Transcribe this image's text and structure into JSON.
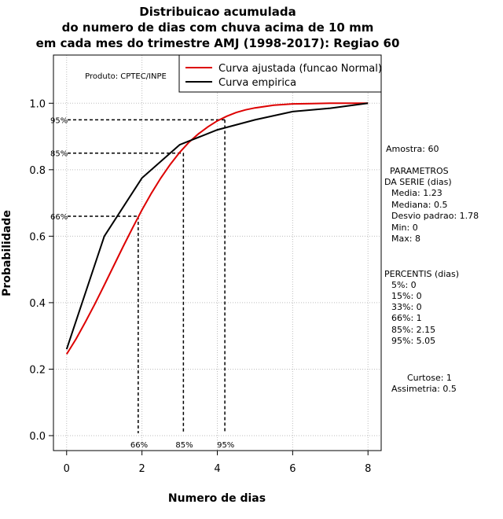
{
  "chart_data": {
    "type": "line",
    "title_lines": [
      "Distribuicao acumulada",
      "do numero de dias com chuva acima de 10 mm",
      "em cada mes do trimestre AMJ (1998-2017): Regiao 60"
    ],
    "xlabel": "Numero de dias",
    "ylabel": "Probabilidade",
    "xlim": [
      -0.35,
      8.35
    ],
    "ylim": [
      -0.045,
      1.145
    ],
    "x_ticks": [
      0,
      2,
      4,
      6,
      8
    ],
    "x_tick_labels": [
      "0",
      "2",
      "4",
      "6",
      "8"
    ],
    "y_ticks": [
      0.0,
      0.2,
      0.4,
      0.6,
      0.8,
      1.0
    ],
    "y_tick_labels": [
      "0.0",
      "0.2",
      "0.4",
      "0.6",
      "0.8",
      "1.0"
    ],
    "grid": true,
    "product_label": "Produto: CPTEC/INPE",
    "legend": {
      "position": "top-right",
      "entries": [
        {
          "label": "Curva ajustada (funcao Normal)",
          "color": "#dd0000"
        },
        {
          "label": "Curva empirica",
          "color": "#000000"
        }
      ]
    },
    "series": [
      {
        "name": "Curva ajustada (funcao Normal)",
        "color": "#dd0000",
        "x": [
          0,
          0.25,
          0.5,
          0.75,
          1,
          1.25,
          1.5,
          1.75,
          2,
          2.25,
          2.5,
          2.75,
          3,
          3.25,
          3.5,
          3.75,
          4,
          4.25,
          4.5,
          4.75,
          5,
          5.5,
          6,
          6.5,
          7,
          7.5,
          8
        ],
        "y": [
          0.245,
          0.291,
          0.342,
          0.396,
          0.453,
          0.511,
          0.569,
          0.625,
          0.679,
          0.729,
          0.775,
          0.816,
          0.852,
          0.883,
          0.908,
          0.929,
          0.947,
          0.961,
          0.972,
          0.98,
          0.986,
          0.994,
          0.998,
          0.999,
          1.0,
          1.0,
          1.0
        ]
      },
      {
        "name": "Curva empirica",
        "color": "#000000",
        "x": [
          0,
          1,
          2,
          3,
          4,
          5,
          6,
          7,
          8
        ],
        "y": [
          0.26,
          0.6,
          0.775,
          0.875,
          0.92,
          0.95,
          0.975,
          0.985,
          1.0
        ]
      }
    ],
    "percentile_markers": [
      {
        "label": "95%",
        "x": 4.2,
        "y": 0.95
      },
      {
        "label": "85%",
        "x": 3.1,
        "y": 0.85
      },
      {
        "label": "66%",
        "x": 1.9,
        "y": 0.66
      }
    ],
    "side_panel": {
      "sample": "Amostra: 60",
      "params_title_1": "PARAMETROS",
      "params_title_2": "DA SERIE (dias)",
      "media": "Media: 1.23",
      "mediana": "Mediana: 0.5",
      "desvio": "Desvio padrao: 1.78",
      "min": "Min: 0",
      "max": "Max: 8",
      "percentis_title": "PERCENTIS (dias)",
      "p5": "5%: 0",
      "p15": "15%: 0",
      "p33": "33%: 0",
      "p66": "66%: 1",
      "p85": "85%: 2.15",
      "p95": "95%: 5.05",
      "curtose": "Curtose: 1",
      "assimetria": "Assimetria: 0.5"
    }
  }
}
